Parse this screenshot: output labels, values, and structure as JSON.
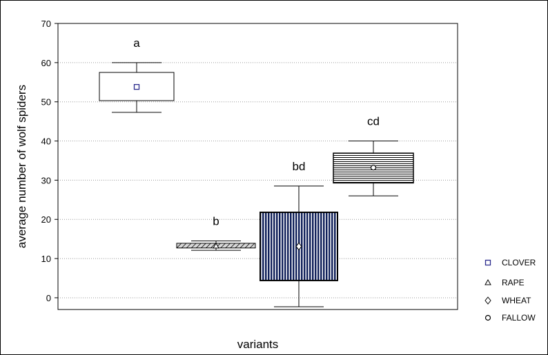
{
  "chart_data": {
    "type": "box",
    "xlabel": "variants",
    "ylabel": "average number of wolf spiders",
    "ylim": [
      -3,
      70
    ],
    "yticks": [
      0,
      10,
      20,
      30,
      40,
      50,
      60,
      70
    ],
    "grid": "horizontal dotted",
    "legend_placement": "right",
    "series": [
      {
        "name": "CLOVER",
        "letter": "a",
        "mean": 53.8,
        "box": [
          50.3,
          57.5
        ],
        "whiskers": [
          47.3,
          60.0
        ],
        "fill": "white",
        "center_marker": "square"
      },
      {
        "name": "RAPE",
        "letter": "b",
        "mean": 13.2,
        "box": [
          12.7,
          13.9
        ],
        "whiskers": [
          12.1,
          14.5
        ],
        "fill": "diagonal hatch",
        "center_marker": "triangle"
      },
      {
        "name": "WHEAT",
        "letter": "bd",
        "mean": 13.1,
        "box": [
          4.4,
          21.8
        ],
        "whiskers": [
          -2.3,
          28.5
        ],
        "fill": "vertical stripes navy",
        "center_marker": "diamond"
      },
      {
        "name": "FALLOW",
        "letter": "cd",
        "mean": 33.2,
        "box": [
          29.3,
          36.9
        ],
        "whiskers": [
          26.0,
          40.0
        ],
        "fill": "horizontal stripes",
        "center_marker": "circle"
      }
    ]
  },
  "colors": {
    "axis": "#000000",
    "grid": "#999999",
    "navy": "#10205a",
    "marker": "#2a2a8c"
  }
}
